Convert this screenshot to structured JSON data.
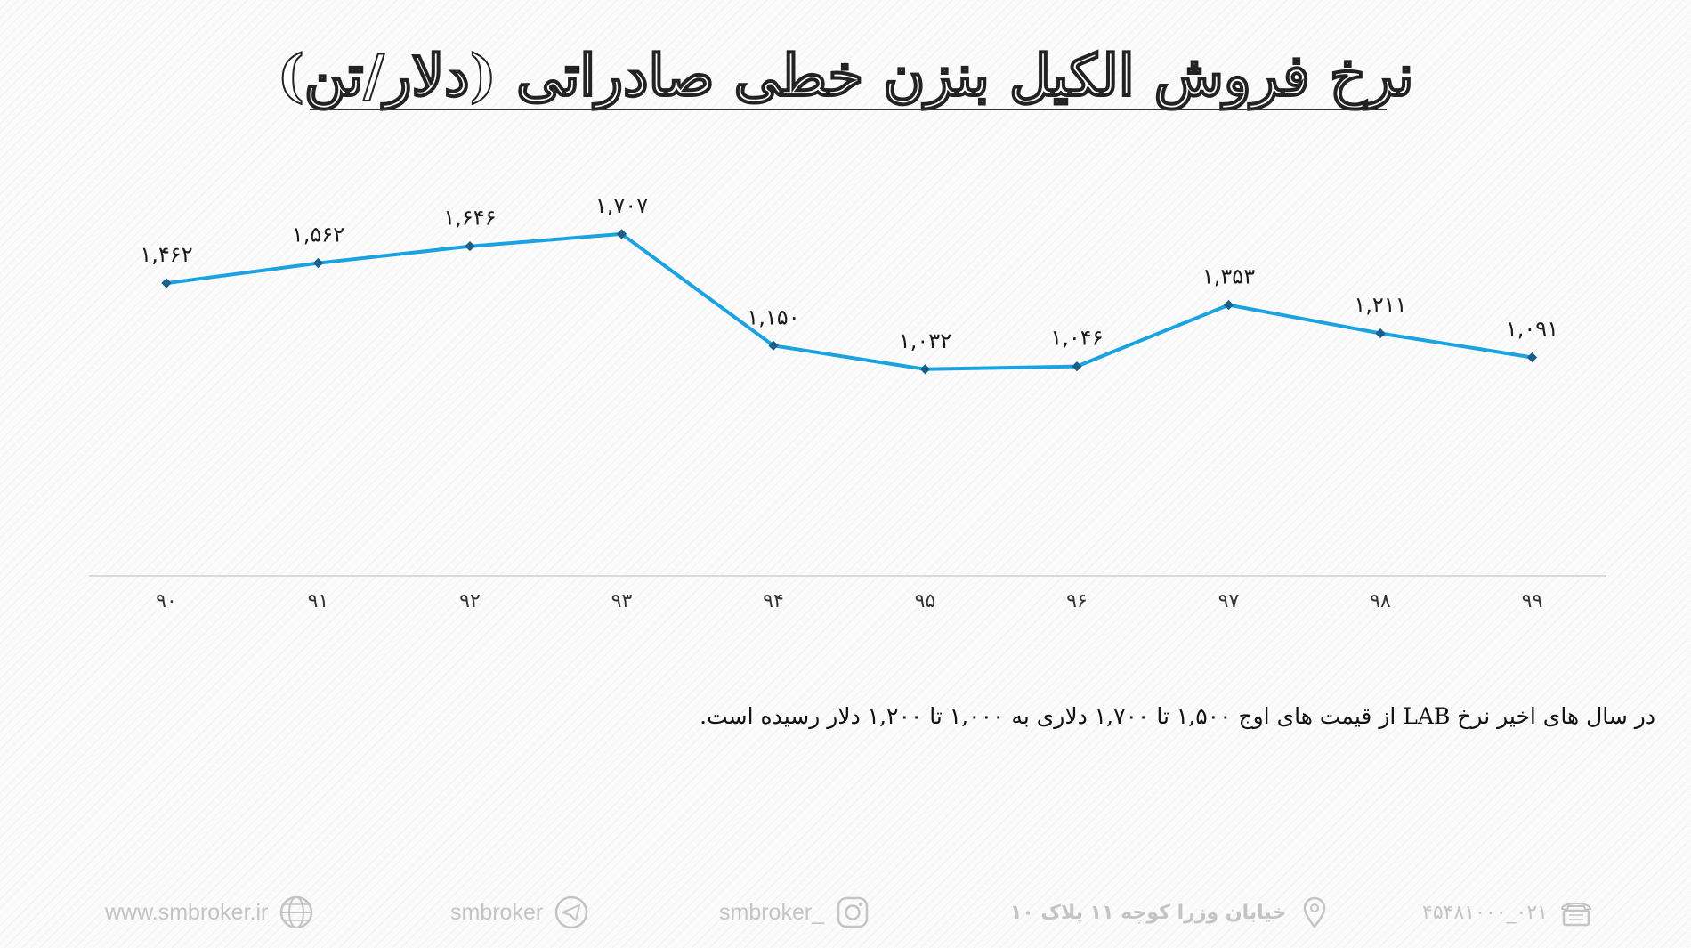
{
  "title": "نرخ فروش الکیل بنزن خطی صادراتی (دلار/تن)",
  "chart_data": {
    "type": "line",
    "categories": [
      "۹۰",
      "۹۱",
      "۹۲",
      "۹۳",
      "۹۴",
      "۹۵",
      "۹۶",
      "۹۷",
      "۹۸",
      "۹۹"
    ],
    "values": [
      1462,
      1562,
      1646,
      1707,
      1150,
      1032,
      1046,
      1353,
      1211,
      1091
    ],
    "value_labels": [
      "۱,۴۶۲",
      "۱,۵۶۲",
      "۱,۶۴۶",
      "۱,۷۰۷",
      "۱,۱۵۰",
      "۱,۰۳۲",
      "۱,۰۴۶",
      "۱,۳۵۳",
      "۱,۲۱۱",
      "۱,۰۹۱"
    ],
    "ylim": [
      0,
      1800
    ],
    "grid": false,
    "line_color": "#1ba3e0",
    "marker_color": "#1a5e8a",
    "axis_color": "#d9d9d9"
  },
  "note": "در سال های اخیر نرخ LAB از قیمت های اوج ۱,۵۰۰ تا ۱,۷۰۰ دلاری به ۱,۰۰۰ تا ۱,۲۰۰ دلار رسیده است.",
  "footer": {
    "website": "www.smbroker.ir",
    "website_icon": "globe-icon",
    "telegram": "smbroker",
    "telegram_icon": "telegram-icon",
    "instagram": "smbroker_",
    "instagram_icon": "instagram-icon",
    "address": "خیابان وزرا کوچه ۱۱ پلاک ۱۰",
    "address_icon": "location-pin-icon",
    "phone": "۰۲۱_۴۵۴۸۱۰۰۰",
    "phone_icon": "telephone-icon"
  }
}
